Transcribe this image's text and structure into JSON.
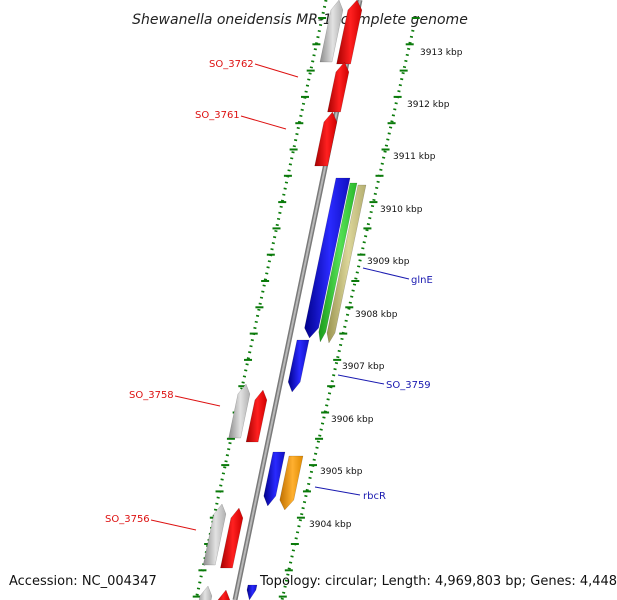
{
  "title": "Shewanella oneidensis MR-1, complete genome",
  "footer": {
    "accession": "Accession: NC_004347",
    "topology": "Topology: circular; Length: 4,969,803 bp; Genes: 4,448"
  },
  "colors": {
    "backbone": "#9a9a9a",
    "tick_marks": "#0a7a0a",
    "gene_red": "#ee1111",
    "gene_grey": "#c4c4c4",
    "gene_blue": "#1414dd",
    "gene_green": "#33cc33",
    "gene_khaki": "#c8c080",
    "gene_orange": "#f5a011",
    "label_red": "#dd1111",
    "label_blue": "#1a1ab0"
  },
  "scale_kbp": [
    3913,
    3912,
    3911,
    3910,
    3909,
    3908,
    3907,
    3906,
    3905,
    3904
  ],
  "gene_labels": [
    {
      "text": "SO_3762",
      "side": "left",
      "color": "red"
    },
    {
      "text": "SO_3761",
      "side": "left",
      "color": "red"
    },
    {
      "text": "glnE",
      "side": "right",
      "color": "blue"
    },
    {
      "text": "SO_3759",
      "side": "right",
      "color": "blue"
    },
    {
      "text": "SO_3758",
      "side": "left",
      "color": "red"
    },
    {
      "text": "rbcR",
      "side": "right",
      "color": "blue"
    },
    {
      "text": "SO_3756",
      "side": "left",
      "color": "red"
    }
  ]
}
